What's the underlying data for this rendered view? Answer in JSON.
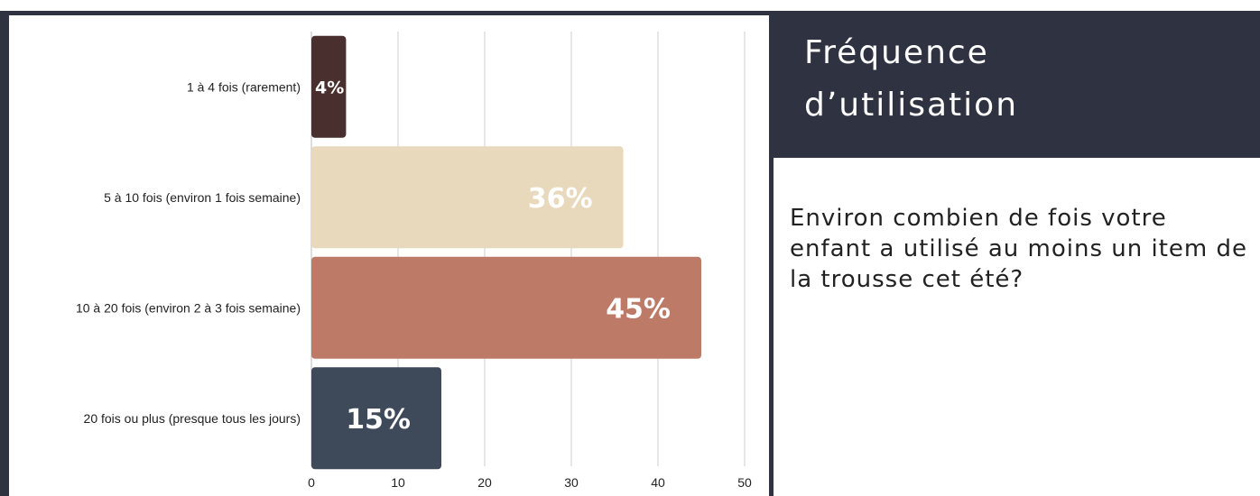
{
  "header": {
    "title": "Fréquence d’utilisation",
    "question": "Environ combien de fois votre enfant a utilisé au moins un item de la trousse cet été?"
  },
  "chart_data": {
    "type": "bar",
    "orientation": "horizontal",
    "categories": [
      "1 à 4 fois (rarement)",
      "5 à 10 fois (environ 1 fois semaine)",
      "10 à 20 fois (environ 2 à 3 fois semaine)",
      "20 fois ou plus (presque tous les jours)"
    ],
    "values": [
      4,
      36,
      45,
      15
    ],
    "data_labels": [
      "4%",
      "36%",
      "45%",
      "15%"
    ],
    "colors": [
      "#4a2f2f",
      "#e8d9bd",
      "#bd7a66",
      "#3e4a5a"
    ],
    "xlim": [
      0,
      50
    ],
    "xticks": [
      0,
      10,
      20,
      30,
      40,
      50
    ],
    "grid": true
  }
}
